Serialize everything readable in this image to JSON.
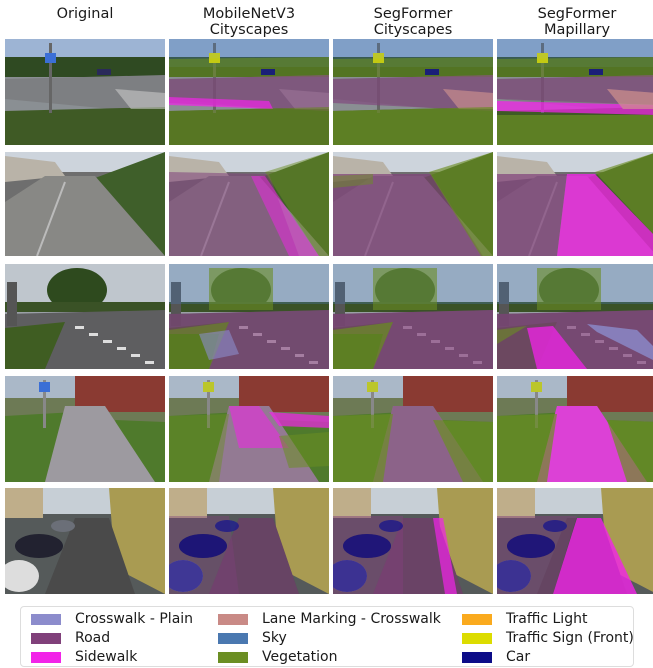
{
  "columns": [
    {
      "title": "Original"
    },
    {
      "title": "MobileNetV3\nCityscapes"
    },
    {
      "title": "SegFormer\nCityscapes"
    },
    {
      "title": "SegFormer\nMapillary"
    }
  ],
  "legend": {
    "items": [
      {
        "label": "Crosswalk - Plain",
        "color": "#8c8ccc",
        "icon": "swatch"
      },
      {
        "label": "Road",
        "color": "#80407a",
        "icon": "swatch"
      },
      {
        "label": "Sidewalk",
        "color": "#f223e8",
        "icon": "swatch"
      },
      {
        "label": "Lane Marking - Crosswalk",
        "color": "#c98a86",
        "icon": "swatch"
      },
      {
        "label": "Sky",
        "color": "#4a78b0",
        "icon": "swatch"
      },
      {
        "label": "Vegetation",
        "color": "#6b8e23",
        "icon": "swatch"
      },
      {
        "label": "Traffic Light",
        "color": "#faaa1e",
        "icon": "swatch"
      },
      {
        "label": "Traffic Sign (Front)",
        "color": "#dcdc00",
        "icon": "swatch"
      },
      {
        "label": "Car",
        "color": "#0c0c88",
        "icon": "swatch"
      }
    ]
  },
  "rows": [
    {
      "scene": "intersection with crosswalk, lamp post and traffic sign"
    },
    {
      "scene": "residential street with hedge on right"
    },
    {
      "scene": "road junction under cloudy sky with trees"
    },
    {
      "scene": "footpath between grass toward brick building"
    },
    {
      "scene": "narrow sidewalk beside parked cars and yellow houses"
    }
  ]
}
